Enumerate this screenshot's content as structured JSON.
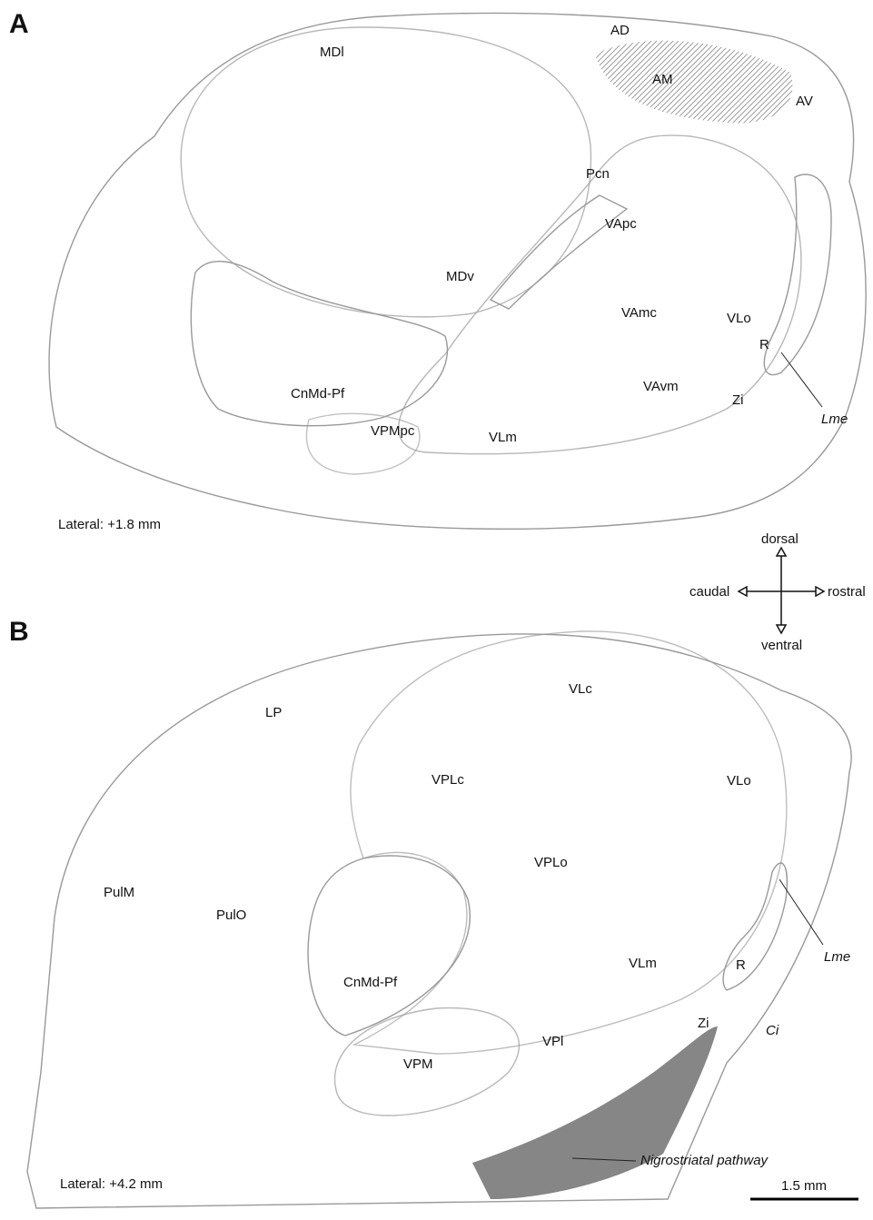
{
  "panels": [
    {
      "letter": "A",
      "regions": [
        "MDl",
        "AD",
        "AM",
        "AV",
        "Pcn",
        "VApc",
        "MDv",
        "VAmc",
        "VLo",
        "R",
        "CnMd-Pf",
        "VAvm",
        "Zi",
        "Lme",
        "VPMpc",
        "VLm"
      ],
      "lateral": "Lateral: +1.8 mm"
    },
    {
      "letter": "B",
      "regions": [
        "LP",
        "VLc",
        "VPLc",
        "VLo",
        "VPLo",
        "PulM",
        "PulO",
        "Lme",
        "VLm",
        "R",
        "CnMd-Pf",
        "Zi",
        "Ci",
        "VPl",
        "VPM",
        "Nigrostriatal pathway"
      ],
      "lateral": "Lateral: +4.2 mm"
    }
  ],
  "orientation": {
    "dorsal": "dorsal",
    "ventral": "ventral",
    "caudal": "caudal",
    "rostral": "rostral"
  },
  "scale_bar": "1.5 mm"
}
